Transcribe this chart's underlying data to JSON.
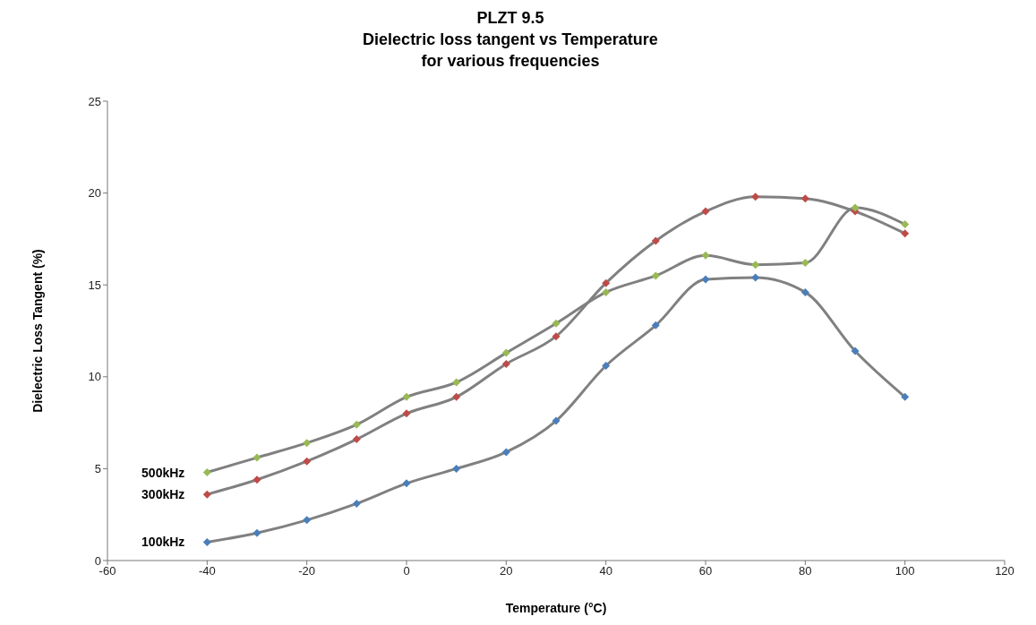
{
  "chart_data": {
    "type": "line",
    "title": "PLZT 9.5\nDielectric loss tangent vs Temperature\nfor various frequencies",
    "xlabel": "Temperature (°C)",
    "ylabel": "Dielectric Loss Tangent (%)",
    "x": [
      -40,
      -30,
      -20,
      -10,
      0,
      10,
      20,
      30,
      40,
      50,
      60,
      70,
      80,
      90,
      100
    ],
    "series": [
      {
        "name": "100kHz",
        "color": "#4a7ebb",
        "values": [
          1.0,
          1.5,
          2.2,
          3.1,
          4.2,
          5.0,
          5.9,
          7.6,
          10.6,
          12.8,
          15.3,
          15.4,
          14.6,
          11.4,
          8.9
        ]
      },
      {
        "name": "300kHz",
        "color": "#be4b48",
        "values": [
          3.6,
          4.4,
          5.4,
          6.6,
          8.0,
          8.9,
          10.7,
          12.2,
          15.1,
          17.4,
          19.0,
          19.8,
          19.7,
          19.0,
          17.8
        ]
      },
      {
        "name": "500kHz",
        "color": "#98b954",
        "values": [
          4.8,
          5.6,
          6.4,
          7.4,
          8.9,
          9.7,
          11.3,
          12.9,
          14.6,
          15.5,
          16.6,
          16.1,
          16.2,
          19.2,
          18.3
        ]
      }
    ],
    "xlim": [
      -60,
      120
    ],
    "xticks": [
      -60,
      -40,
      -20,
      0,
      20,
      40,
      60,
      80,
      100,
      120
    ],
    "ylim": [
      0,
      25
    ],
    "yticks": [
      0,
      5,
      10,
      15,
      20,
      25
    ],
    "grid": false,
    "legend": false,
    "marker": "diamond",
    "line_style": "solid"
  }
}
